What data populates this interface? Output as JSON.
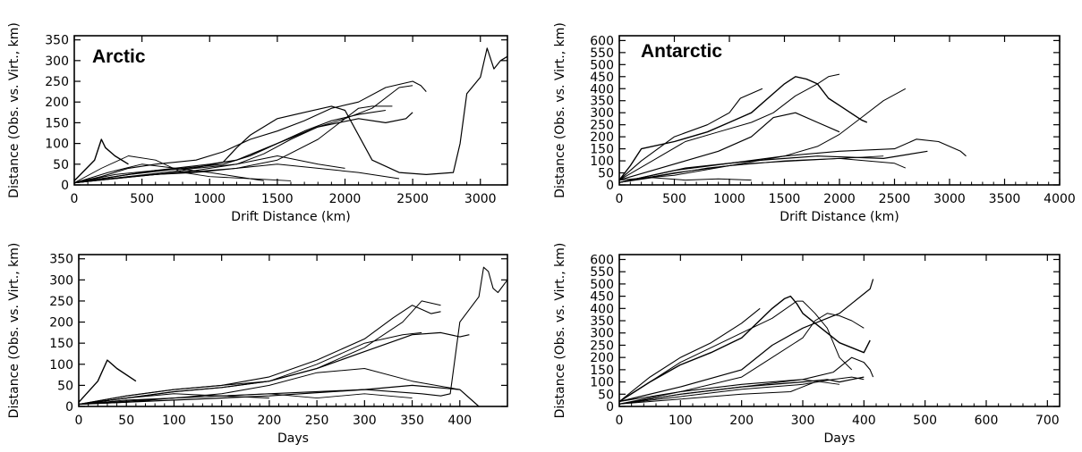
{
  "figure": {
    "regions": [
      "Arctic",
      "Antarctic"
    ]
  },
  "chart_data": [
    {
      "type": "line",
      "title": "Arctic",
      "xlabel": "Drift Distance (km)",
      "ylabel": "Distance (Obs. vs. Virt., km)",
      "xlim": [
        0,
        3200
      ],
      "ylim": [
        0,
        360
      ],
      "xticks": [
        0,
        500,
        1000,
        1500,
        2000,
        2500,
        3000
      ],
      "yticks": [
        0,
        50,
        100,
        150,
        200,
        250,
        300,
        350
      ],
      "grid": false,
      "series": [
        {
          "x": [
            0,
            150,
            200,
            230,
            300,
            400
          ],
          "y": [
            10,
            60,
            110,
            90,
            70,
            50
          ]
        },
        {
          "x": [
            0,
            200,
            400,
            600,
            900,
            1100,
            1300,
            1500,
            1700,
            1900,
            2100,
            2300,
            2500,
            2560,
            2600
          ],
          "y": [
            5,
            20,
            40,
            50,
            60,
            80,
            110,
            130,
            155,
            185,
            200,
            235,
            250,
            240,
            225
          ]
        },
        {
          "x": [
            0,
            300,
            600,
            900,
            1200,
            1400,
            1600,
            1800,
            2000,
            2200,
            2400,
            2500
          ],
          "y": [
            5,
            25,
            35,
            40,
            50,
            75,
            110,
            140,
            160,
            185,
            235,
            240
          ]
        },
        {
          "x": [
            0,
            300,
            600,
            1000,
            1200,
            1500,
            1800,
            2100,
            2300,
            2450,
            2500
          ],
          "y": [
            5,
            20,
            35,
            50,
            60,
            100,
            140,
            160,
            150,
            160,
            175
          ]
        },
        {
          "x": [
            0,
            400,
            800,
            1200,
            1500,
            1800,
            2000,
            2100,
            2200,
            2350
          ],
          "y": [
            5,
            20,
            30,
            40,
            60,
            110,
            160,
            185,
            190,
            190
          ]
        },
        {
          "x": [
            0,
            400,
            800,
            1100,
            1300,
            1500,
            1700,
            1900,
            2100,
            2300
          ],
          "y": [
            5,
            25,
            40,
            50,
            70,
            100,
            130,
            155,
            170,
            180
          ]
        },
        {
          "x": [
            0,
            400,
            800,
            1100,
            1200,
            1300,
            1500,
            1700,
            1900,
            2000,
            2200,
            2400,
            2600,
            2800,
            2850,
            2900,
            3000,
            3050,
            3100,
            3150,
            3200
          ],
          "y": [
            5,
            20,
            35,
            55,
            90,
            120,
            160,
            175,
            190,
            180,
            60,
            30,
            25,
            30,
            100,
            220,
            260,
            330,
            280,
            300,
            310
          ]
        },
        {
          "x": [
            0,
            300,
            600,
            900,
            1200,
            1500,
            1800,
            2100,
            2400
          ],
          "y": [
            5,
            15,
            25,
            30,
            40,
            50,
            40,
            30,
            15
          ]
        },
        {
          "x": [
            0,
            200,
            400,
            600,
            800,
            1000,
            1300,
            1600
          ],
          "y": [
            5,
            40,
            70,
            60,
            30,
            20,
            15,
            10
          ]
        },
        {
          "x": [
            0,
            300,
            600,
            900,
            1200,
            1500,
            1800,
            2000
          ],
          "y": [
            5,
            15,
            25,
            35,
            50,
            70,
            50,
            40
          ]
        },
        {
          "x": [
            0,
            250,
            500,
            750,
            1000,
            1200,
            1400
          ],
          "y": [
            5,
            30,
            50,
            40,
            30,
            20,
            10
          ]
        }
      ]
    },
    {
      "type": "line",
      "title": "Antarctic",
      "xlabel": "Drift Distance (km)",
      "ylabel": "Distance (Obs. vs. Virt., km)",
      "xlim": [
        0,
        4000
      ],
      "ylim": [
        0,
        620
      ],
      "xticks": [
        0,
        500,
        1000,
        1500,
        2000,
        2500,
        3000,
        3500,
        4000
      ],
      "yticks": [
        0,
        50,
        100,
        150,
        200,
        250,
        300,
        350,
        400,
        450,
        500,
        550,
        600
      ],
      "grid": false,
      "series": [
        {
          "x": [
            0,
            100,
            200,
            500,
            800,
            1000,
            1200,
            1400,
            1500,
            1600,
            1700,
            1800,
            1900,
            2000,
            2100,
            2200,
            2250
          ],
          "y": [
            20,
            80,
            150,
            180,
            220,
            260,
            300,
            380,
            420,
            450,
            440,
            420,
            360,
            330,
            300,
            270,
            260
          ]
        },
        {
          "x": [
            0,
            200,
            500,
            800,
            1000,
            1100,
            1200,
            1300
          ],
          "y": [
            20,
            100,
            200,
            250,
            300,
            360,
            380,
            400
          ]
        },
        {
          "x": [
            0,
            300,
            600,
            900,
            1200,
            1400,
            1600,
            1800,
            1900,
            2000
          ],
          "y": [
            20,
            100,
            180,
            220,
            260,
            300,
            370,
            420,
            450,
            460
          ]
        },
        {
          "x": [
            0,
            300,
            600,
            900,
            1200,
            1400,
            1600,
            1800,
            2000
          ],
          "y": [
            20,
            60,
            100,
            140,
            200,
            280,
            300,
            260,
            220
          ]
        },
        {
          "x": [
            0,
            500,
            1000,
            1500,
            1800,
            2000,
            2200,
            2400,
            2600
          ],
          "y": [
            20,
            40,
            80,
            120,
            160,
            210,
            280,
            350,
            400
          ]
        },
        {
          "x": [
            0,
            500,
            1000,
            1500,
            2000,
            2500,
            2700,
            2900,
            3100,
            3150
          ],
          "y": [
            10,
            60,
            90,
            120,
            140,
            150,
            190,
            180,
            140,
            120
          ]
        },
        {
          "x": [
            0,
            600,
            1200,
            1800,
            2400,
            2800
          ],
          "y": [
            10,
            70,
            100,
            120,
            110,
            140
          ]
        },
        {
          "x": [
            0,
            500,
            1000,
            1500,
            2000,
            2500,
            2600
          ],
          "y": [
            10,
            50,
            80,
            100,
            110,
            90,
            70
          ]
        },
        {
          "x": [
            0,
            400,
            800,
            1200,
            1600,
            2000,
            2400
          ],
          "y": [
            10,
            40,
            70,
            90,
            100,
            110,
            120
          ]
        },
        {
          "x": [
            0,
            300,
            600,
            900,
            1200
          ],
          "y": [
            10,
            30,
            20,
            25,
            20
          ]
        }
      ]
    },
    {
      "type": "line",
      "title": "",
      "xlabel": "Days",
      "ylabel": "Distance (Obs. vs. Virt., km)",
      "xlim": [
        0,
        450
      ],
      "ylim": [
        0,
        360
      ],
      "xticks": [
        0,
        50,
        100,
        150,
        200,
        250,
        300,
        350,
        400
      ],
      "yticks": [
        0,
        50,
        100,
        150,
        200,
        250,
        300,
        350
      ],
      "grid": false,
      "series": [
        {
          "x": [
            0,
            20,
            30,
            40,
            60
          ],
          "y": [
            10,
            60,
            110,
            90,
            60
          ]
        },
        {
          "x": [
            0,
            50,
            100,
            150,
            200,
            250,
            300,
            330,
            350,
            360,
            370,
            380
          ],
          "y": [
            5,
            25,
            40,
            50,
            70,
            110,
            160,
            210,
            240,
            230,
            220,
            225
          ]
        },
        {
          "x": [
            0,
            50,
            100,
            150,
            200,
            250,
            300,
            340,
            360,
            380
          ],
          "y": [
            5,
            20,
            35,
            45,
            60,
            90,
            140,
            200,
            250,
            240
          ]
        },
        {
          "x": [
            0,
            50,
            100,
            150,
            200,
            250,
            300,
            350,
            380,
            400,
            410
          ],
          "y": [
            5,
            20,
            35,
            45,
            60,
            90,
            130,
            170,
            175,
            165,
            170
          ]
        },
        {
          "x": [
            0,
            50,
            100,
            150,
            200,
            250,
            300,
            340,
            360
          ],
          "y": [
            5,
            25,
            40,
            50,
            60,
            100,
            150,
            170,
            175
          ]
        },
        {
          "x": [
            0,
            100,
            200,
            300,
            360,
            380,
            390,
            400,
            410,
            420,
            425,
            430,
            435,
            440,
            450
          ],
          "y": [
            5,
            20,
            30,
            40,
            30,
            25,
            30,
            200,
            230,
            260,
            330,
            320,
            280,
            270,
            300
          ]
        },
        {
          "x": [
            0,
            100,
            200,
            300,
            350,
            400,
            420
          ],
          "y": [
            5,
            15,
            25,
            40,
            50,
            40,
            0
          ]
        },
        {
          "x": [
            0,
            50,
            100,
            150,
            200,
            250,
            300,
            350,
            400
          ],
          "y": [
            5,
            15,
            20,
            30,
            50,
            80,
            90,
            60,
            40
          ]
        },
        {
          "x": [
            0,
            50,
            100,
            150,
            200,
            250,
            300,
            350
          ],
          "y": [
            5,
            10,
            20,
            25,
            30,
            20,
            30,
            20
          ]
        },
        {
          "x": [
            0,
            50,
            100,
            150,
            200
          ],
          "y": [
            5,
            20,
            30,
            25,
            20
          ]
        }
      ]
    },
    {
      "type": "line",
      "title": "",
      "xlabel": "Days",
      "ylabel": "Distance (Obs. vs. Virt., km)",
      "xlim": [
        0,
        720
      ],
      "ylim": [
        0,
        620
      ],
      "xticks": [
        0,
        100,
        200,
        300,
        400,
        500,
        600,
        700
      ],
      "yticks": [
        0,
        50,
        100,
        150,
        200,
        250,
        300,
        350,
        400,
        450,
        500,
        550,
        600
      ],
      "grid": false,
      "series": [
        {
          "x": [
            0,
            50,
            100,
            150,
            200,
            250,
            270,
            280,
            290,
            300,
            320,
            340,
            360,
            380,
            400,
            410
          ],
          "y": [
            20,
            100,
            170,
            220,
            280,
            400,
            440,
            450,
            420,
            380,
            340,
            300,
            260,
            240,
            220,
            270
          ]
        },
        {
          "x": [
            0,
            50,
            100,
            150,
            200,
            230
          ],
          "y": [
            20,
            120,
            200,
            260,
            340,
            400
          ]
        },
        {
          "x": [
            0,
            50,
            100,
            150,
            200,
            250,
            290,
            300,
            320,
            340,
            360,
            380
          ],
          "y": [
            20,
            100,
            180,
            240,
            300,
            360,
            430,
            430,
            380,
            320,
            200,
            150
          ]
        },
        {
          "x": [
            0,
            100,
            200,
            250,
            300,
            340,
            360,
            380,
            400,
            410,
            415
          ],
          "y": [
            20,
            80,
            150,
            250,
            320,
            360,
            380,
            420,
            460,
            480,
            520
          ]
        },
        {
          "x": [
            0,
            100,
            200,
            250,
            300,
            320,
            340,
            360,
            380,
            400
          ],
          "y": [
            20,
            60,
            120,
            200,
            280,
            350,
            380,
            370,
            350,
            320
          ]
        },
        {
          "x": [
            0,
            100,
            200,
            300,
            350,
            380,
            400,
            410,
            415
          ],
          "y": [
            10,
            60,
            90,
            110,
            140,
            200,
            180,
            150,
            120
          ]
        },
        {
          "x": [
            0,
            100,
            200,
            300,
            340,
            360,
            380,
            400
          ],
          "y": [
            10,
            50,
            80,
            100,
            110,
            100,
            110,
            120
          ]
        },
        {
          "x": [
            0,
            100,
            200,
            300,
            350,
            380,
            400
          ],
          "y": [
            10,
            40,
            70,
            90,
            110,
            120,
            110
          ]
        },
        {
          "x": [
            0,
            100,
            200,
            300,
            360
          ],
          "y": [
            10,
            50,
            80,
            110,
            90
          ]
        },
        {
          "x": [
            0,
            100,
            200,
            280,
            320
          ],
          "y": [
            10,
            30,
            50,
            60,
            100
          ]
        }
      ]
    }
  ]
}
